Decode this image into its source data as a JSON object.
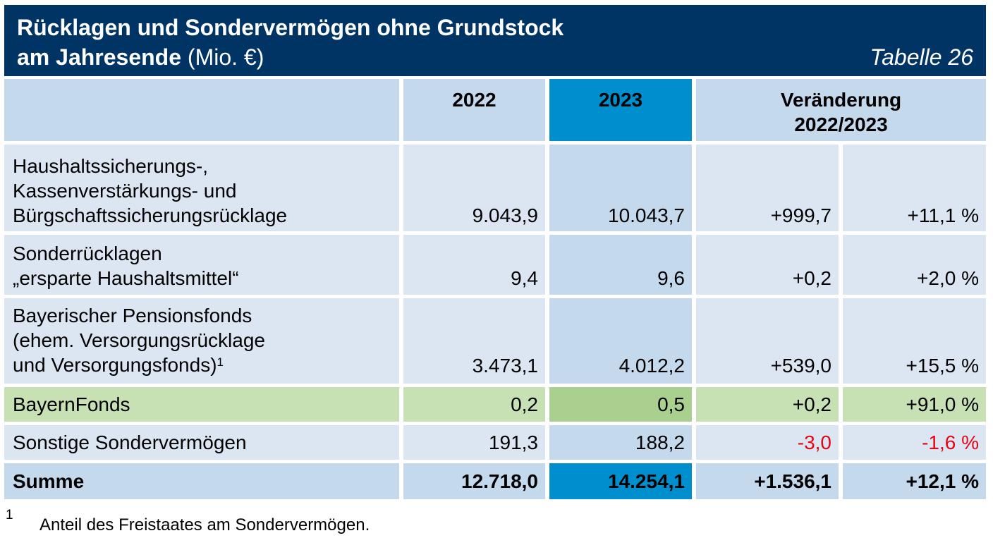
{
  "header": {
    "title_line1": "Rücklagen und Sondervermögen ohne Grundstock",
    "title_line2_bold": "am Jahresende",
    "title_line2_unit": "(Mio. €)",
    "table_number": "Tabelle 26"
  },
  "columns": {
    "year1": "2022",
    "year2": "2023",
    "change_line1": "Veränderung",
    "change_line2": "2022/2023"
  },
  "rows": [
    {
      "label_lines": [
        "Haushaltssicherungs-,",
        "Kassenverstärkungs- und",
        "Bürgschaftssicherungsrücklage"
      ],
      "v2022": "9.043,9",
      "v2023": "10.043,7",
      "abs": "+999,7",
      "pct": "+11,1 %"
    },
    {
      "label_lines": [
        "Sonderrücklagen",
        "„ersparte Haushaltsmittel“"
      ],
      "v2022": "9,4",
      "v2023": "9,6",
      "abs": "+0,2",
      "pct": "+2,0 %"
    },
    {
      "label_lines": [
        "Bayerischer Pensionsfonds",
        "(ehem. Versorgungsrücklage",
        "und Versorgungsfonds)"
      ],
      "footnote_ref": "1",
      "v2022": "3.473,1",
      "v2023": "4.012,2",
      "abs": "+539,0",
      "pct": "+15,5 %"
    },
    {
      "label_lines": [
        "BayernFonds"
      ],
      "v2022": "0,2",
      "v2023": "0,5",
      "abs": "+0,2",
      "pct": "+91,0 %"
    },
    {
      "label_lines": [
        "Sonstige Sondervermögen"
      ],
      "v2022": "191,3",
      "v2023": "188,2",
      "abs": "-3,0",
      "pct": "-1,6 %"
    }
  ],
  "total": {
    "label": "Summe",
    "v2022": "12.718,0",
    "v2023": "14.254,1",
    "abs": "+1.536,1",
    "pct": "+12,1 %"
  },
  "footnote": {
    "mark": "1",
    "text": "Anteil des Freistaates am Sondervermögen."
  },
  "colors": {
    "header_bg": "#003465",
    "column_2023_bg": "#008fce",
    "row_bg": "#dce6f2",
    "bayernfonds_bg": "#c7e0b4",
    "negative_text": "#e30613"
  }
}
